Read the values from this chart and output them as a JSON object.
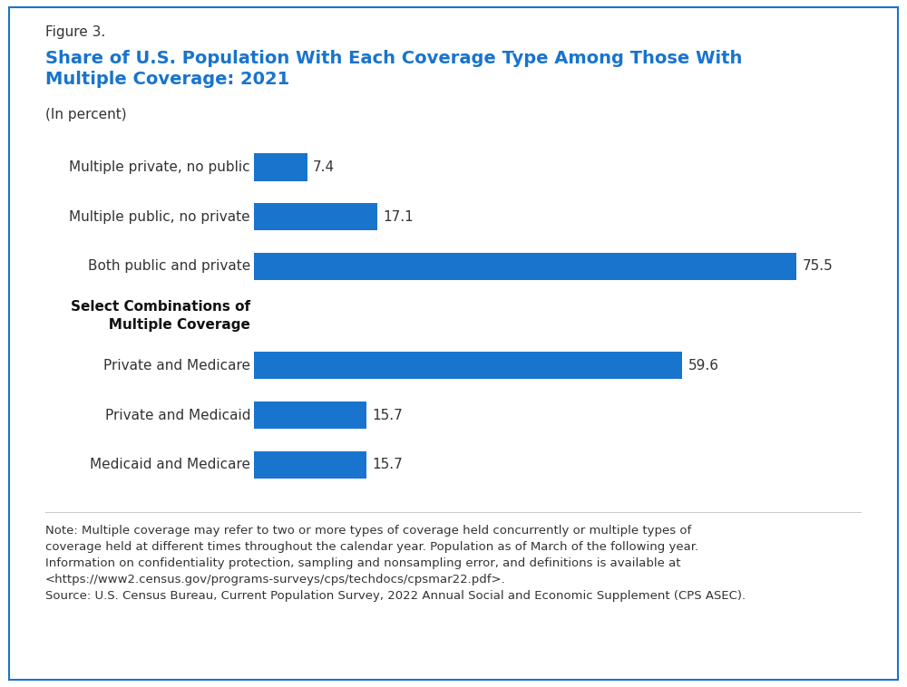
{
  "figure_label": "Figure 3.",
  "title": "Share of U.S. Population With Each Coverage Type Among Those With\nMultiple Coverage: 2021",
  "subtitle": "(In percent)",
  "title_color": "#1874CD",
  "figure_label_color": "#333333",
  "bar_color": "#1874CD",
  "categories": [
    "Multiple private, no public",
    "Multiple public, no private",
    "Both public and private",
    "SELECT_COMBINATIONS_LABEL",
    "Private and Medicare",
    "Private and Medicaid",
    "Medicaid and Medicare"
  ],
  "values": [
    7.4,
    17.1,
    75.5,
    null,
    59.6,
    15.7,
    15.7
  ],
  "select_label_line1": "Select Combinations of",
  "select_label_line2": "Multiple Coverage",
  "note_text": "Note: Multiple coverage may refer to two or more types of coverage held concurrently or multiple types of\ncoverage held at different times throughout the calendar year. Population as of March of the following year.\nInformation on confidentiality protection, sampling and nonsampling error, and definitions is available at\n<https://www2.census.gov/programs-surveys/cps/techdocs/cpsmar22.pdf>.\nSource: U.S. Census Bureau, Current Population Survey, 2022 Annual Social and Economic Supplement (CPS ASEC).",
  "xlim": [
    0,
    82
  ],
  "background_color": "#ffffff",
  "border_color": "#1874CD",
  "value_label_fontsize": 11,
  "category_label_fontsize": 11,
  "bar_height": 0.55
}
